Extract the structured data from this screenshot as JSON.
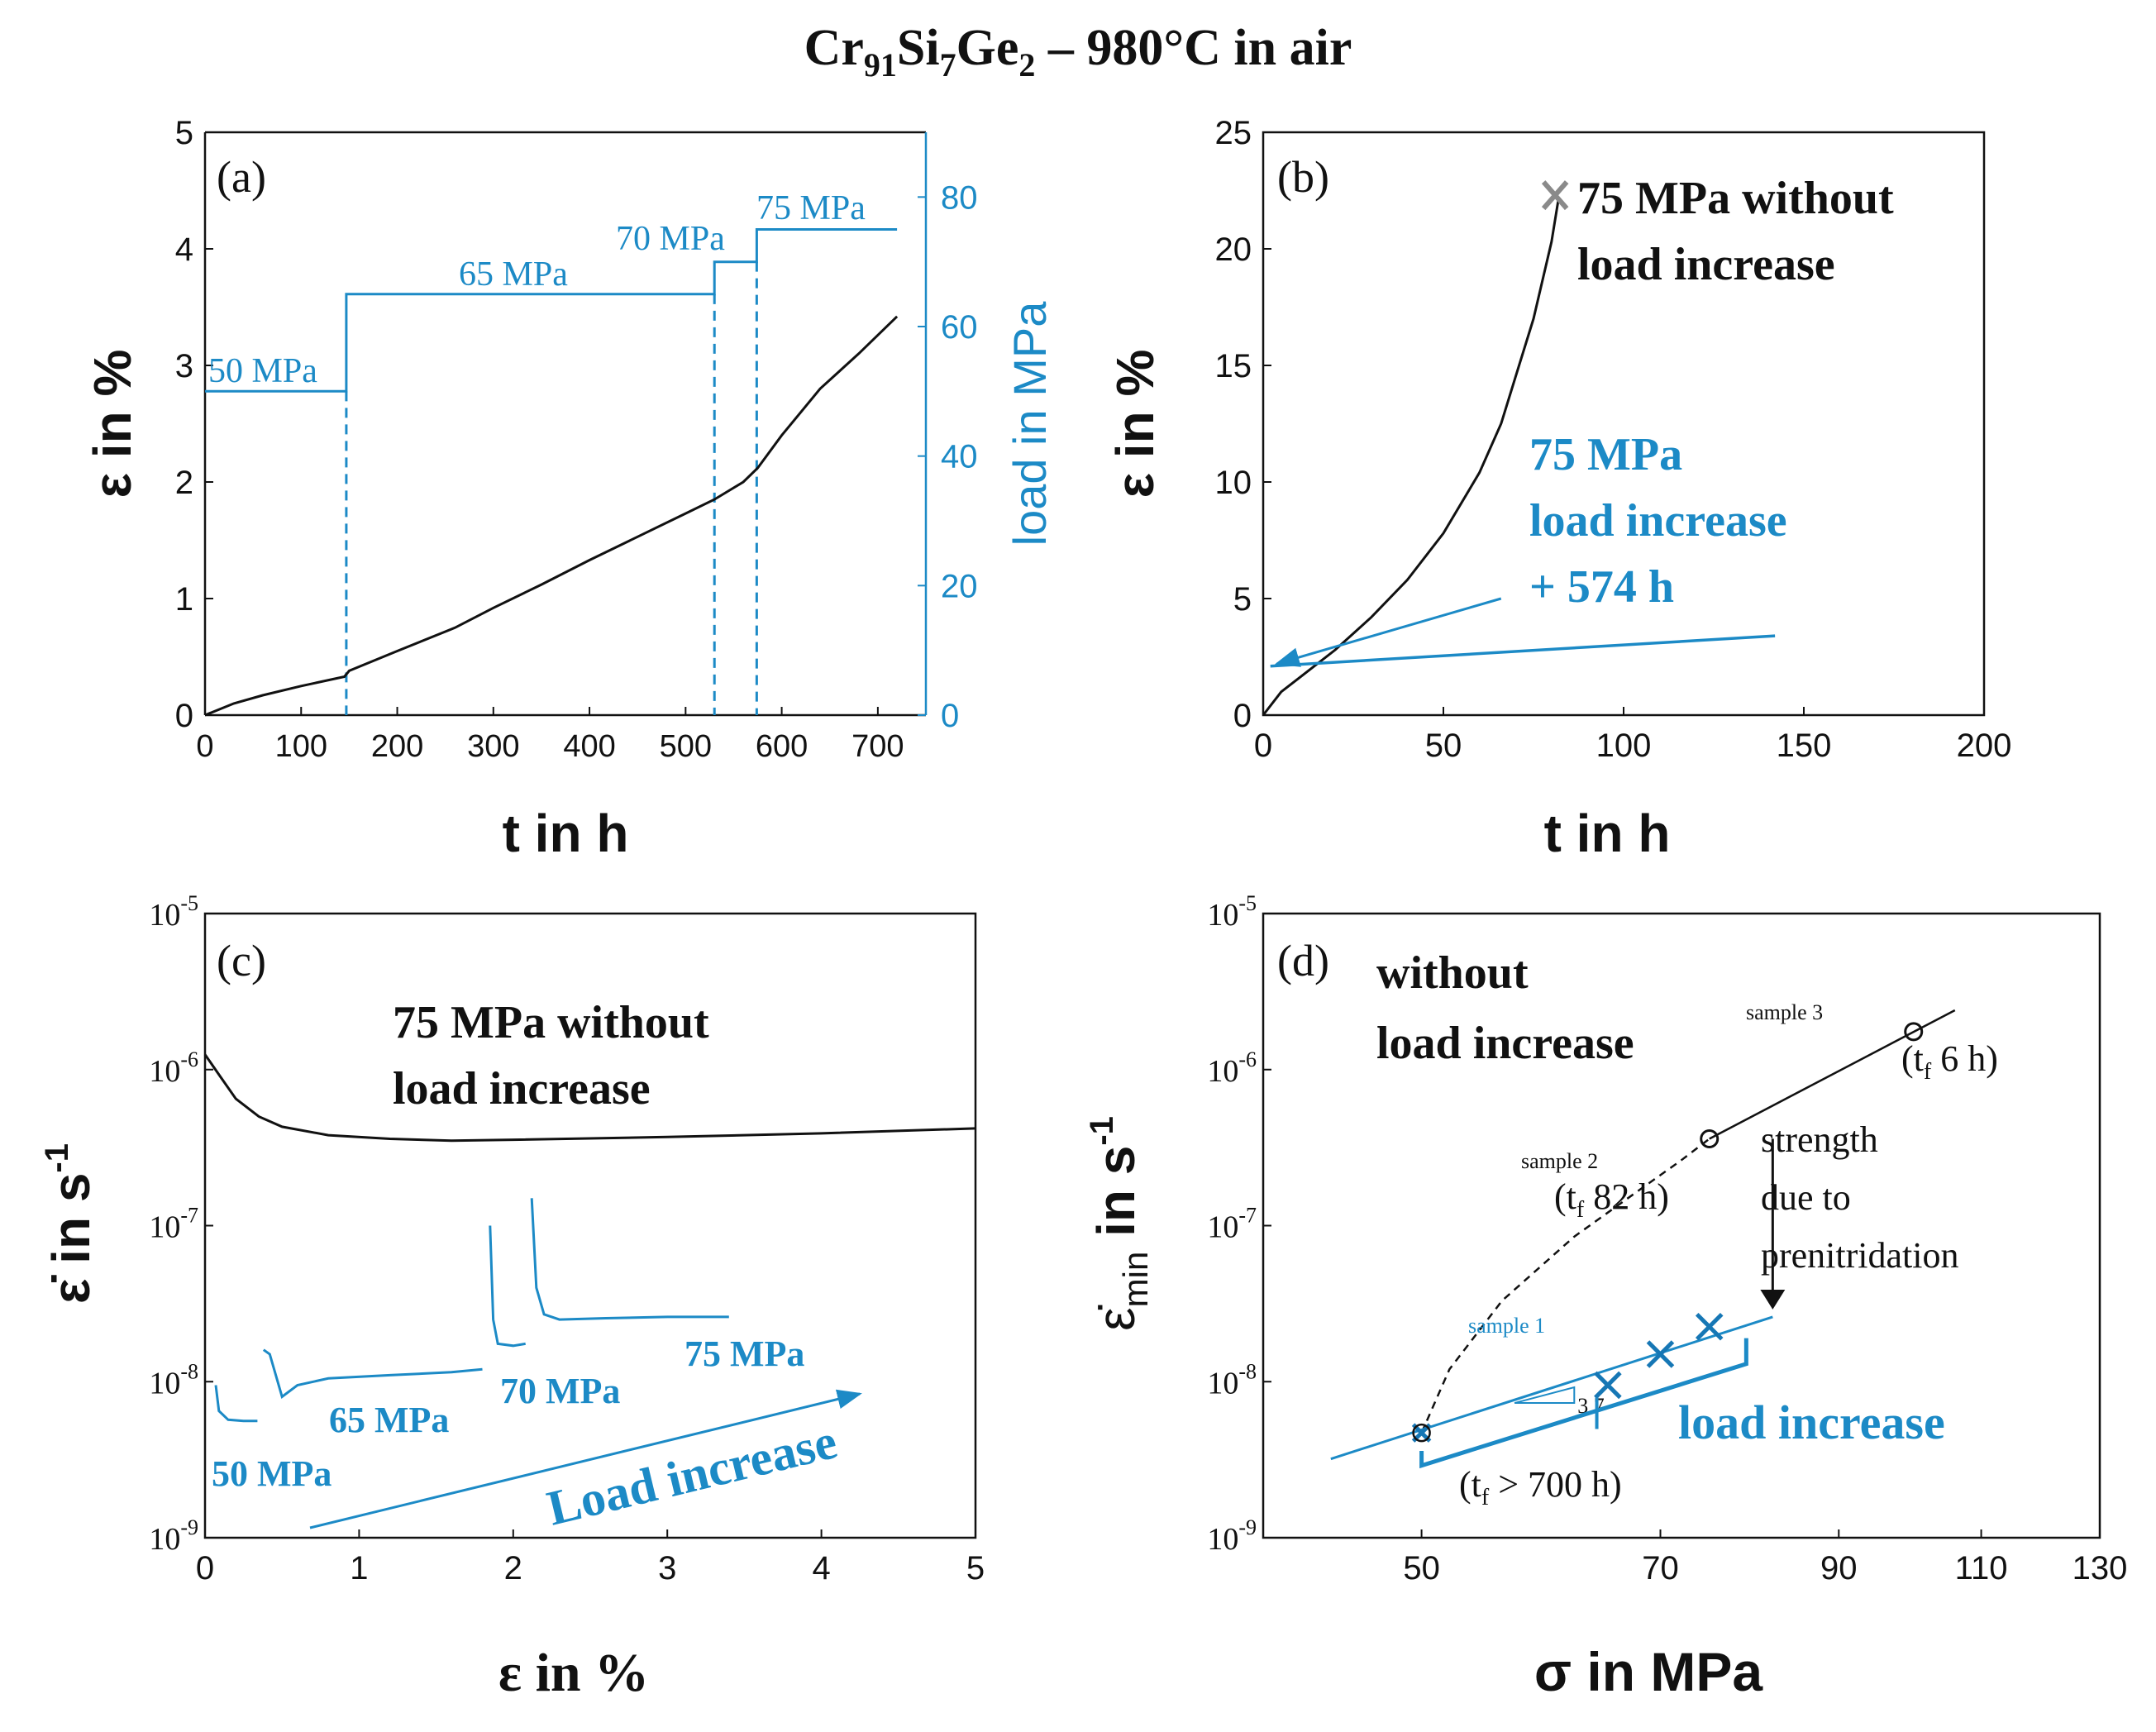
{
  "title": {
    "main": "Cr",
    "s1": "91",
    "t2": "Si",
    "s2": "7",
    "t3": "Ge",
    "s3": "2",
    "rest": " – 980°C in air"
  },
  "colors": {
    "blue": "#1c8ac6",
    "blue_dark": "#1677b5",
    "black": "#111111",
    "gray": "#8a8a8a"
  },
  "chart_data": [
    {
      "panel": "(a)",
      "type": "line",
      "xlabel": "t in h",
      "ylabel": "ε in %",
      "y2label": "load in MPa",
      "xlim": [
        0,
        750
      ],
      "ylim": [
        0,
        5
      ],
      "y2lim": [
        0,
        90
      ],
      "xticks": [
        "0",
        "100",
        "200",
        "300",
        "400",
        "500",
        "600",
        "700"
      ],
      "yticks": [
        "0",
        "1",
        "2",
        "3",
        "4",
        "5"
      ],
      "y2ticks": [
        "0",
        "20",
        "40",
        "60",
        "80"
      ],
      "strain": {
        "x": [
          0,
          30,
          60,
          100,
          145,
          150,
          200,
          260,
          300,
          350,
          400,
          450,
          500,
          530,
          560,
          575,
          600,
          640,
          680,
          720
        ],
        "y": [
          0,
          0.1,
          0.17,
          0.25,
          0.33,
          0.38,
          0.55,
          0.75,
          0.92,
          1.12,
          1.33,
          1.53,
          1.73,
          1.85,
          2.0,
          2.12,
          2.4,
          2.8,
          3.1,
          3.42
        ]
      },
      "load": {
        "x": [
          0,
          147,
          147,
          530,
          530,
          574,
          574,
          720
        ],
        "y": [
          50,
          50,
          65,
          65,
          70,
          70,
          75,
          75
        ]
      },
      "load_change_times": [
        147,
        530,
        574
      ],
      "labels": [
        "50 MPa",
        "65 MPa",
        "70 MPa",
        "75 MPa"
      ]
    },
    {
      "panel": "(b)",
      "type": "line",
      "xlabel": "t in h",
      "ylabel": "ε in %",
      "xlim": [
        0,
        200
      ],
      "ylim": [
        0,
        25
      ],
      "xticks": [
        "0",
        "50",
        "100",
        "150",
        "200"
      ],
      "yticks": [
        "0",
        "5",
        "10",
        "15",
        "20",
        "25"
      ],
      "curve": {
        "x": [
          0,
          5,
          10,
          20,
          30,
          40,
          50,
          60,
          66,
          70,
          75,
          80,
          82
        ],
        "y": [
          0,
          1.0,
          1.6,
          2.8,
          4.2,
          5.8,
          7.8,
          10.4,
          12.5,
          14.5,
          17.0,
          20.3,
          22.2
        ]
      },
      "failure_point": {
        "x": 81,
        "y": 22.3
      },
      "load_increase_segment": {
        "x": [
          2,
          142
        ],
        "y": [
          2.1,
          3.4
        ]
      },
      "arrow_from": {
        "x": 66,
        "y": 5.0
      },
      "arrow_to": {
        "x": 2,
        "y": 2.1
      },
      "label_black": [
        "75 MPa without",
        "load increase"
      ],
      "label_blue": [
        "75 MPa",
        "load increase",
        "+ 574 h"
      ]
    },
    {
      "panel": "(c)",
      "type": "line",
      "xlabel": "ε in %",
      "ylabel": "ε̇ in s",
      "ylabel_sup": "-1",
      "xlim": [
        0,
        5
      ],
      "ylim": [
        1e-09,
        1e-05
      ],
      "yscale": "log",
      "xticks": [
        "0",
        "1",
        "2",
        "3",
        "4",
        "5"
      ],
      "yticks": [
        {
          "base": "10",
          "exp": "-9"
        },
        {
          "base": "10",
          "exp": "-8"
        },
        {
          "base": "10",
          "exp": "-7"
        },
        {
          "base": "10",
          "exp": "-6"
        },
        {
          "base": "10",
          "exp": "-5"
        }
      ],
      "without_load_increase": {
        "x": [
          0,
          0.1,
          0.2,
          0.35,
          0.5,
          0.8,
          1.2,
          1.6,
          2.0,
          3.0,
          4.0,
          5.0
        ],
        "y": [
          1.25e-06,
          9e-07,
          6.5e-07,
          5e-07,
          4.3e-07,
          3.8e-07,
          3.6e-07,
          3.5e-07,
          3.55e-07,
          3.7e-07,
          3.9e-07,
          4.2e-07
        ]
      },
      "load_increase_segments": [
        {
          "label": "50 MPa",
          "x": [
            0.07,
            0.09,
            0.15,
            0.25,
            0.34
          ],
          "y": [
            9.5e-09,
            6.5e-09,
            5.7e-09,
            5.6e-09,
            5.6e-09
          ]
        },
        {
          "label": "65 MPa",
          "x": [
            0.38,
            0.42,
            0.5,
            0.6,
            0.8,
            1.2,
            1.6,
            1.8
          ],
          "y": [
            1.6e-08,
            1.5e-08,
            8e-09,
            9.5e-09,
            1.05e-08,
            1.1e-08,
            1.15e-08,
            1.2e-08
          ]
        },
        {
          "label": "70 MPa",
          "x": [
            1.85,
            1.87,
            1.9,
            2.0,
            2.08
          ],
          "y": [
            1e-07,
            2.5e-08,
            1.75e-08,
            1.7e-08,
            1.75e-08
          ]
        },
        {
          "label": "75 MPa",
          "x": [
            2.12,
            2.15,
            2.2,
            2.3,
            2.6,
            3.0,
            3.4
          ],
          "y": [
            1.5e-07,
            4e-08,
            2.7e-08,
            2.5e-08,
            2.55e-08,
            2.6e-08,
            2.6e-08
          ]
        }
      ],
      "label_black": [
        "75 MPa without",
        "load increase"
      ],
      "label_arrow": "Load increase"
    },
    {
      "panel": "(d)",
      "type": "scatter",
      "xlabel": "σ in MPa",
      "ylabel_main": "ε̇",
      "ylabel_sub": "min",
      "ylabel_unit": " in s",
      "ylabel_sup": "-1",
      "xlim": [
        40,
        130
      ],
      "ylim": [
        1e-09,
        1e-05
      ],
      "xscale": "log",
      "yscale": "log",
      "xticks": [
        "50",
        "70",
        "90",
        "110",
        "130"
      ],
      "yticks": [
        {
          "base": "10",
          "exp": "-9"
        },
        {
          "base": "10",
          "exp": "-8"
        },
        {
          "base": "10",
          "exp": "-7"
        },
        {
          "base": "10",
          "exp": "-6"
        },
        {
          "base": "10",
          "exp": "-5"
        }
      ],
      "without_load_increase": {
        "points": [
          {
            "label": "sample 2",
            "x": 75,
            "y": 3.6e-07,
            "tf": "82 h"
          },
          {
            "label": "sample 3",
            "x": 100,
            "y": 1.75e-06,
            "tf": "6 h"
          }
        ],
        "fit_x": [
          75,
          106
        ],
        "fit_y": [
          3.6e-07,
          2.4e-06
        ]
      },
      "load_increase": {
        "label": "sample 1",
        "points": [
          {
            "x": 50,
            "y": 4.7e-09
          },
          {
            "x": 65,
            "y": 9.5e-09
          },
          {
            "x": 70,
            "y": 1.5e-08
          },
          {
            "x": 75,
            "y": 2.25e-08
          }
        ],
        "fit_x": [
          44,
          82
        ],
        "fit_y": [
          3.2e-09,
          2.6e-08
        ],
        "slope": "3.7",
        "tf": "> 700 h"
      },
      "dashed_link_x": [
        50,
        52,
        56,
        62,
        68,
        72,
        75
      ],
      "dashed_link_y": [
        4.7e-09,
        1.2e-08,
        3.3e-08,
        8.5e-08,
        1.7e-07,
        2.6e-07,
        3.6e-07
      ],
      "strength_arrow": {
        "x": 82,
        "y_from": 3.6e-07,
        "y_to": 2.6e-08
      },
      "text_without": [
        "without",
        "load increase"
      ],
      "text_strength": [
        "strength",
        "due to",
        "prenitridation"
      ],
      "text_load_increase": "load increase",
      "tf_prefix": "(t",
      "tf_sub": "f"
    }
  ]
}
